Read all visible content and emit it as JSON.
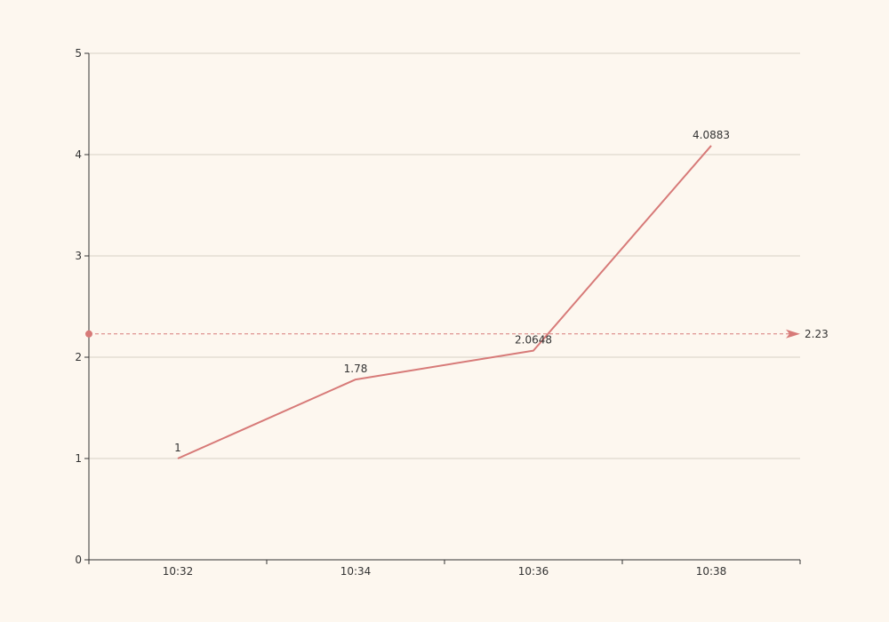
{
  "chart_data": {
    "type": "line",
    "title": "",
    "xlabel": "",
    "ylabel": "",
    "categories": [
      "10:32",
      "10:34",
      "10:36",
      "10:38"
    ],
    "series": [
      {
        "values": [
          1,
          1.78,
          2.0648,
          4.0883
        ],
        "data_labels": [
          "1",
          "1.78",
          "2.0648",
          "4.0883"
        ],
        "color": "#d77a78"
      }
    ],
    "ylim": [
      0,
      5
    ],
    "yticks": [
      "0",
      "1",
      "2",
      "3",
      "4",
      "5"
    ],
    "grid": true,
    "average_line": {
      "value": 2.23,
      "label": "2.23",
      "color": "#d77a78",
      "style": "dashed"
    },
    "colors": {
      "background": "#fdf7ef",
      "grid": "#d8d2c6",
      "axis": "#333333"
    }
  }
}
